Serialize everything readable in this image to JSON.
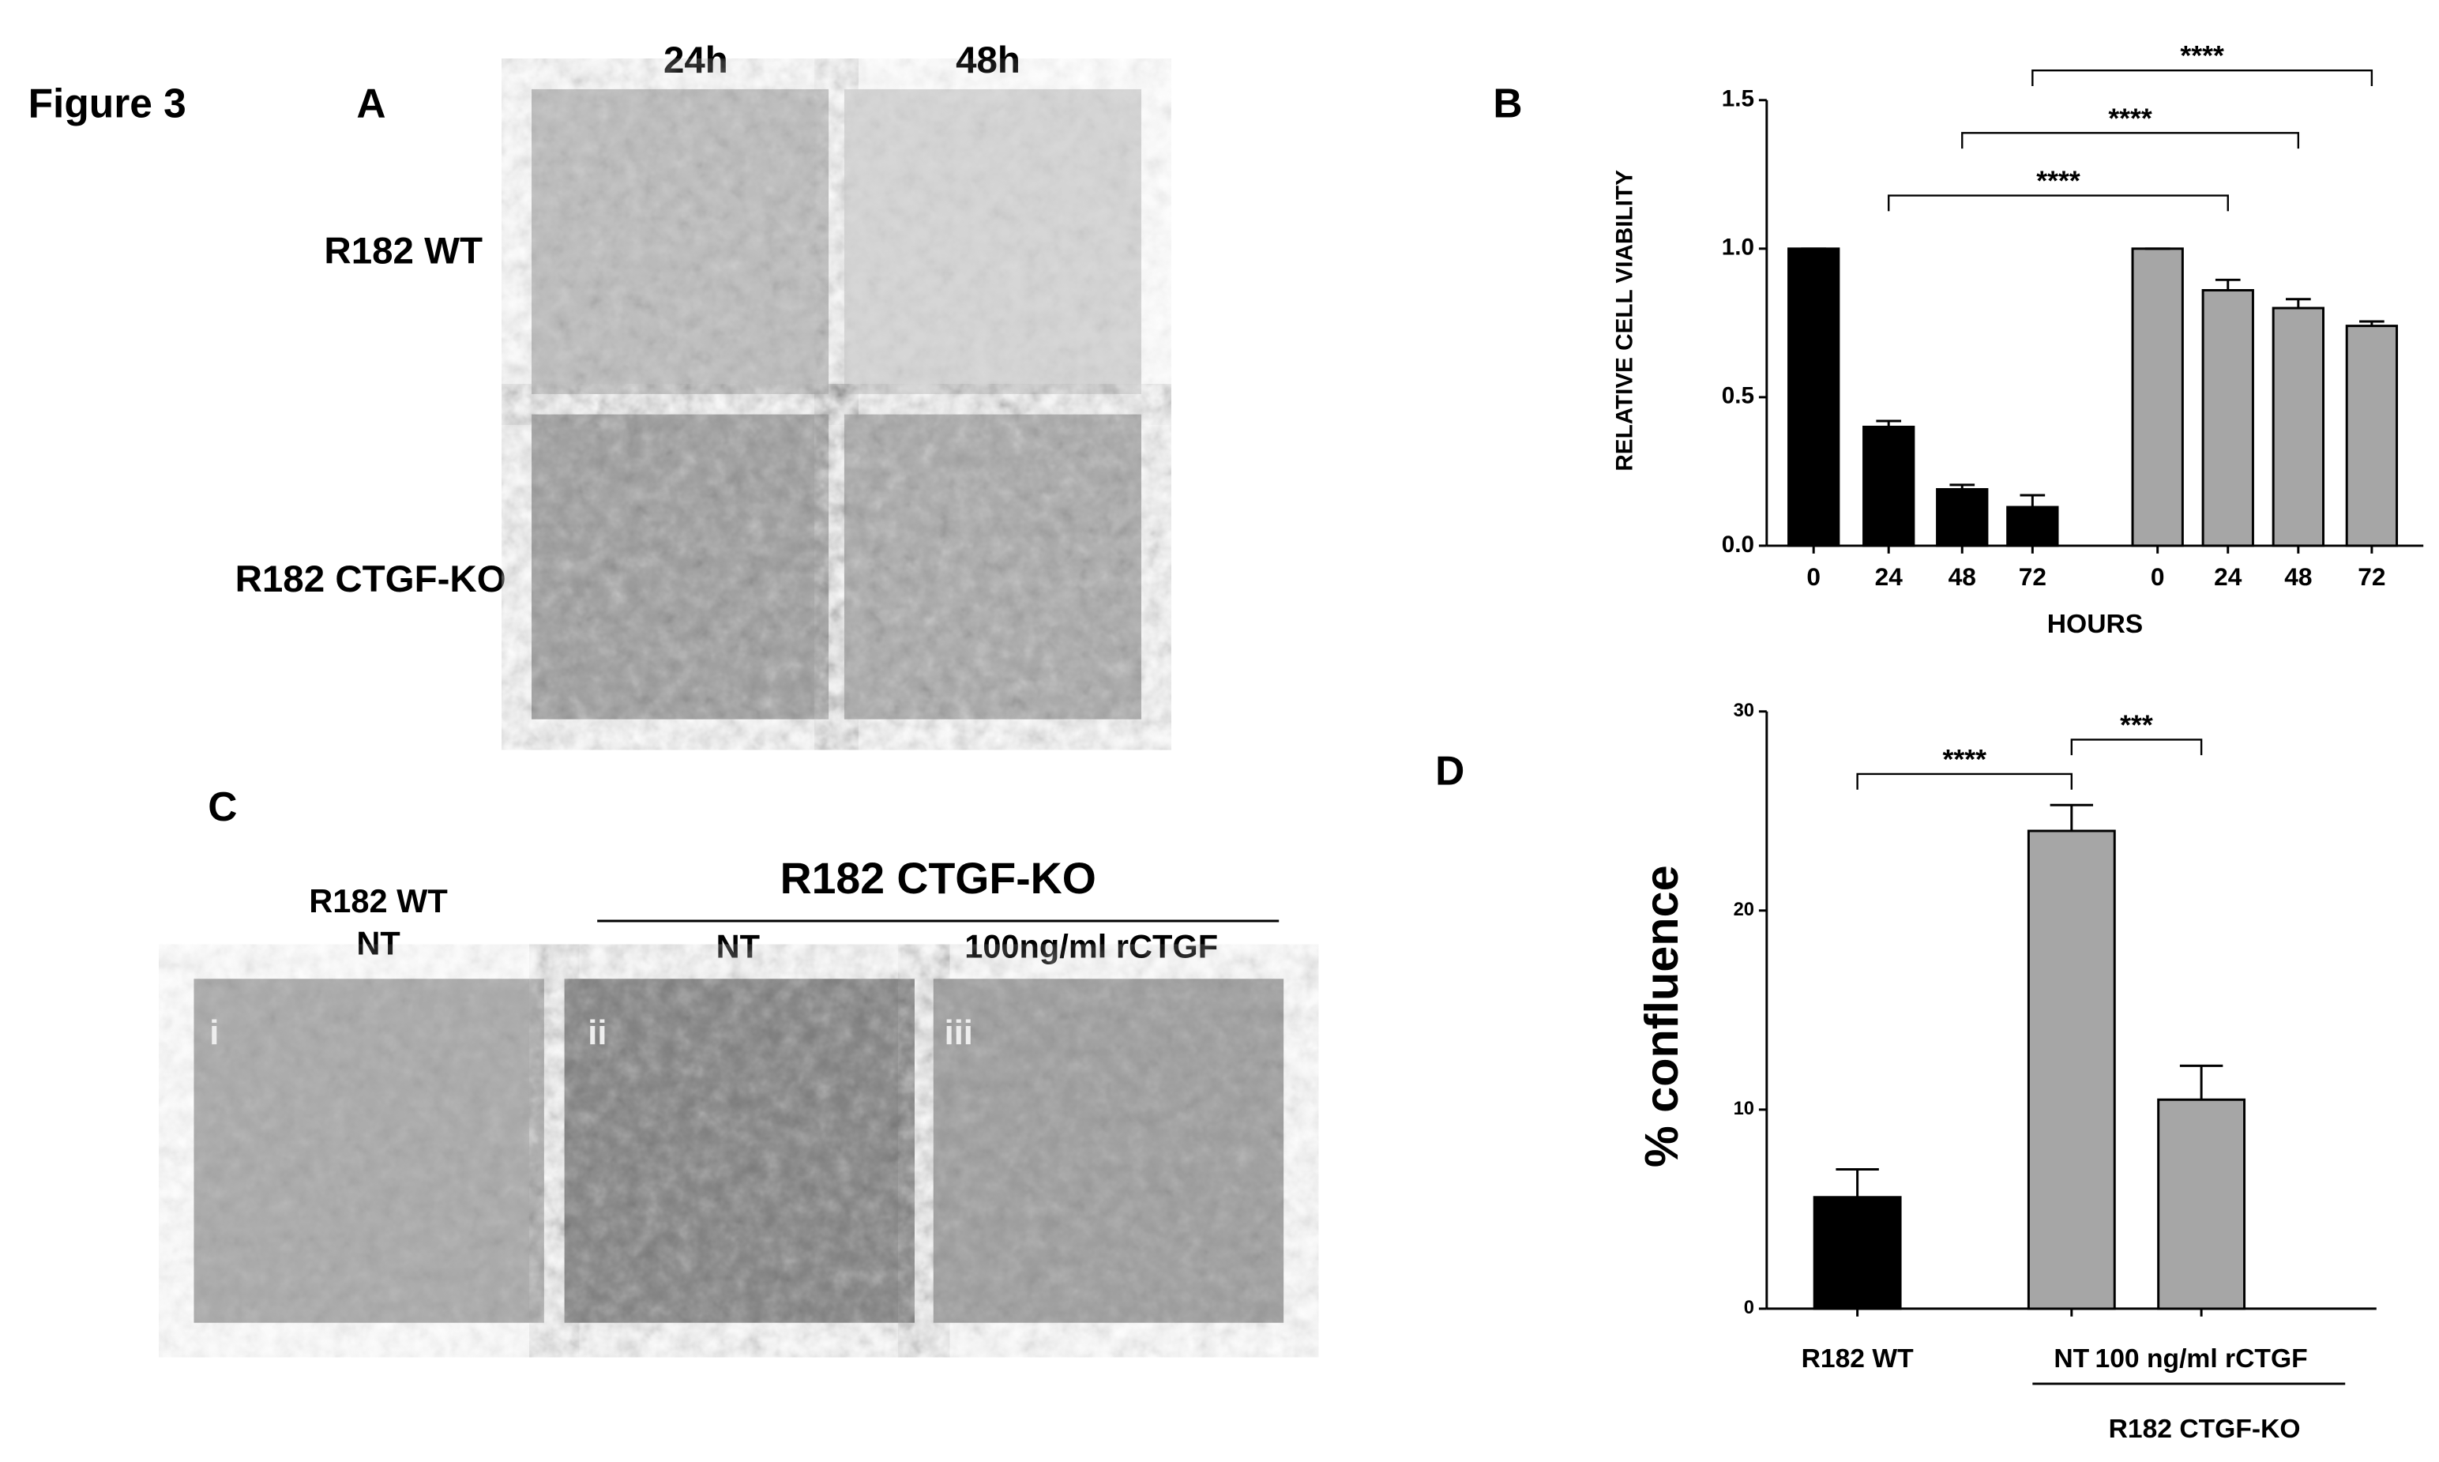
{
  "figure": {
    "title": "Figure 3",
    "panel_a": {
      "letter": "A",
      "columns": [
        "24h",
        "48h"
      ],
      "rows": [
        "R182 WT",
        "R182 CTGF-KO"
      ]
    },
    "panel_b": {
      "letter": "B"
    },
    "panel_c": {
      "letter": "C",
      "group": "R182 CTGF-KO",
      "columns": [
        [
          "R182 WT",
          "NT"
        ],
        [
          "NT"
        ],
        [
          "100ng/ml rCTGF"
        ]
      ],
      "image_labels": [
        "i",
        "ii",
        "iii"
      ]
    },
    "panel_d": {
      "letter": "D"
    }
  },
  "chart_data": [
    {
      "type": "bar",
      "xlabel": "HOURS",
      "ylabel": "RELATIVE CELL VIABILITY",
      "categories": [
        "0",
        "24",
        "48",
        "72",
        "0",
        "24",
        "48",
        "72"
      ],
      "values": [
        1.0,
        0.4,
        0.19,
        0.13,
        1.0,
        0.86,
        0.8,
        0.74
      ],
      "errors": [
        0,
        0.02,
        0.015,
        0.04,
        0,
        0.035,
        0.03,
        0.015
      ],
      "colors": [
        "#000000",
        "#000000",
        "#000000",
        "#000000",
        "#a6a6a6",
        "#a6a6a6",
        "#a6a6a6",
        "#a6a6a6"
      ],
      "ylim": [
        0,
        1.5
      ],
      "yticks": [
        {
          "value": 0,
          "label": "0.0"
        },
        {
          "value": 0.5,
          "label": "0.5"
        },
        {
          "value": 1,
          "label": "1.0"
        },
        {
          "value": 1.5,
          "label": "1.5"
        }
      ],
      "annotations": [
        {
          "text": "****",
          "between": [
            1,
            5
          ]
        },
        {
          "text": "****",
          "between": [
            2,
            6
          ]
        },
        {
          "text": "****",
          "between": [
            3,
            7
          ]
        }
      ]
    },
    {
      "type": "bar",
      "ylabel": "% confluence",
      "group_label": "R182 CTGF-KO",
      "categories": [
        "R182 WT",
        "NT",
        "100 ng/ml rCTGF"
      ],
      "values": [
        5.6,
        24.0,
        10.5
      ],
      "errors": [
        1.4,
        1.3,
        1.7
      ],
      "colors": [
        "#000000",
        "#a6a6a6",
        "#a6a6a6"
      ],
      "ylim": [
        0,
        30
      ],
      "yticks": [
        0,
        10,
        20,
        30
      ],
      "annotations": [
        {
          "text": "****",
          "between": [
            0,
            1
          ]
        },
        {
          "text": "***",
          "between": [
            1,
            2
          ]
        }
      ]
    }
  ]
}
